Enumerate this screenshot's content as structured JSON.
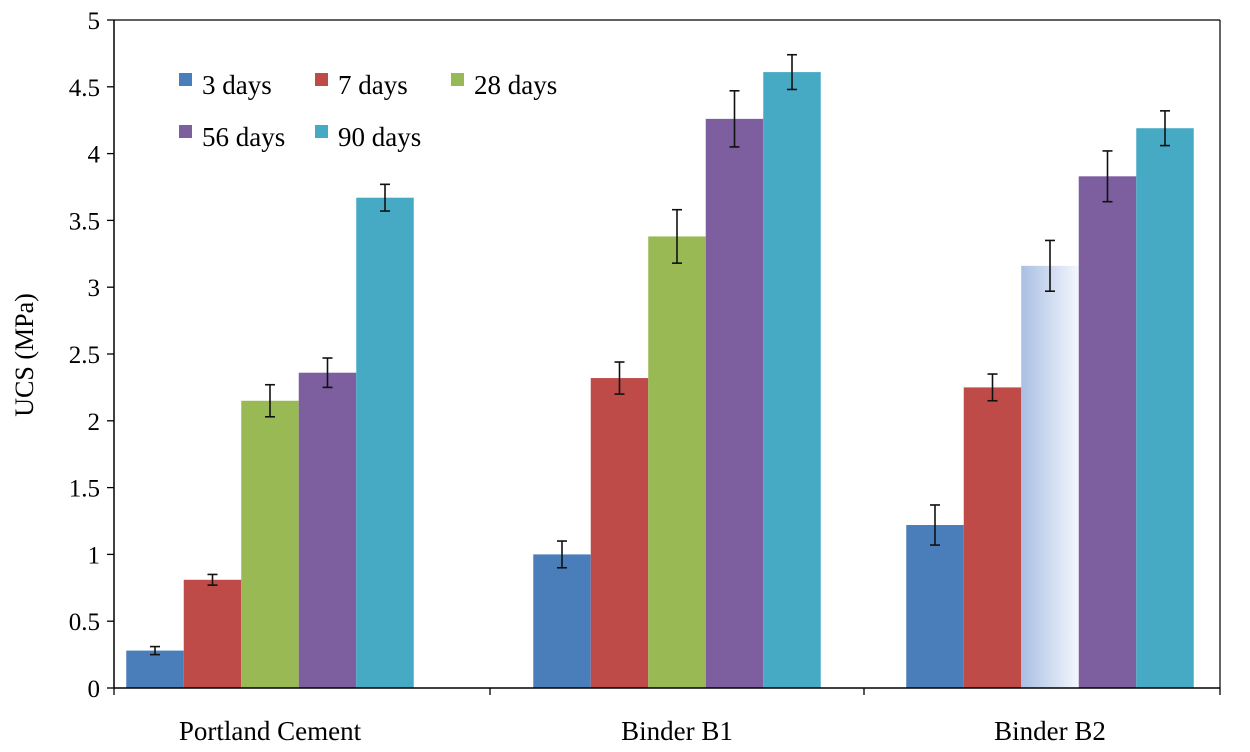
{
  "chart_data": {
    "type": "bar",
    "title": "",
    "xlabel": "",
    "ylabel": "UCS (MPa)",
    "ylim": [
      0,
      5
    ],
    "yticks": [
      "0",
      "0.5",
      "1",
      "1.5",
      "2",
      "2.5",
      "3",
      "3.5",
      "4",
      "4.5",
      "5"
    ],
    "grid": false,
    "legend_position": "top-left",
    "categories": [
      "Portland Cement",
      "Binder B1",
      "Binder B2"
    ],
    "series": [
      {
        "name": "3 days",
        "color": "#4a7ebb",
        "values": [
          0.28,
          1.0,
          1.22
        ],
        "errors": [
          0.03,
          0.1,
          0.15
        ]
      },
      {
        "name": "7 days",
        "color": "#be4b48",
        "values": [
          0.81,
          2.32,
          2.25
        ],
        "errors": [
          0.04,
          0.12,
          0.1
        ]
      },
      {
        "name": "28 days",
        "color": "#98b954",
        "values": [
          2.15,
          3.38,
          3.16
        ],
        "errors": [
          0.12,
          0.2,
          0.19
        ]
      },
      {
        "name": "56 days",
        "color": "#7d5fa0",
        "values": [
          2.36,
          4.26,
          3.83
        ],
        "errors": [
          0.11,
          0.21,
          0.19
        ]
      },
      {
        "name": "90 days",
        "color": "#46aac5",
        "values": [
          3.67,
          4.61,
          4.19
        ],
        "errors": [
          0.1,
          0.13,
          0.13
        ]
      }
    ]
  }
}
